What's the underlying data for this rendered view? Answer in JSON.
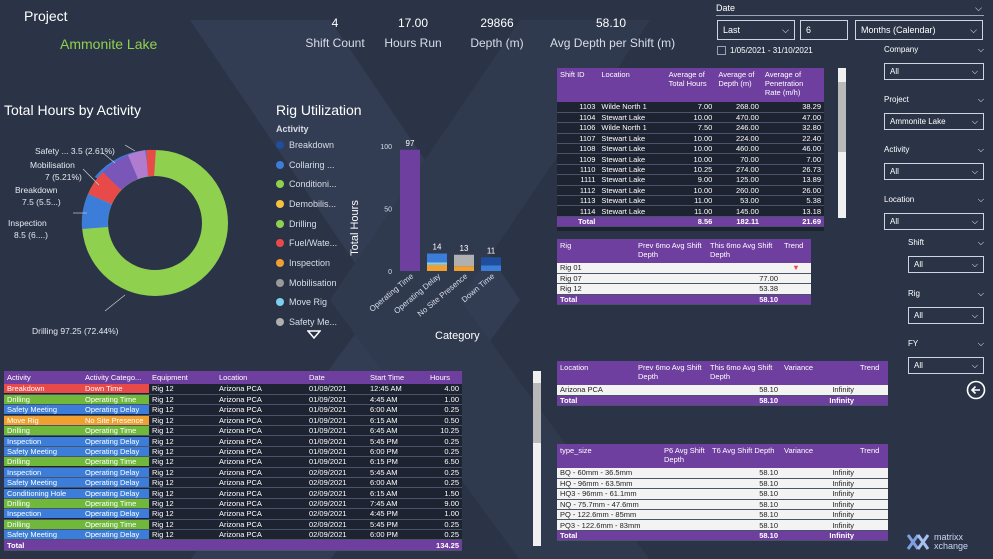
{
  "header": {
    "project_label": "Project",
    "project_name": "Ammonite Lake",
    "kpis": [
      {
        "value": "4",
        "label": "Shift Count"
      },
      {
        "value": "17.00",
        "label": "Hours Run"
      },
      {
        "value": "29866",
        "label": "Depth (m)"
      },
      {
        "value": "58.10",
        "label": "Avg Depth per Shift (m)"
      }
    ]
  },
  "date_filter": {
    "label": "Date",
    "mode": "Last",
    "count": "6",
    "unit": "Months (Calendar)",
    "range": "1/05/2021 - 31/10/2021"
  },
  "slicers": [
    {
      "label": "Company",
      "value": "All"
    },
    {
      "label": "Project",
      "value": "Ammonite Lake"
    },
    {
      "label": "Activity",
      "value": "All"
    },
    {
      "label": "Location",
      "value": "All"
    },
    {
      "label": "Shift",
      "value": "All"
    },
    {
      "label": "Rig",
      "value": "All"
    },
    {
      "label": "FY",
      "value": "All"
    }
  ],
  "colors": {
    "bg": "#2b3447",
    "purple": "#6f3fa0",
    "green": "#8fd14f"
  },
  "donut": {
    "title": "Total Hours by Activity",
    "labels": {
      "safety": "Safety ... 3.5 (2.61%)",
      "mobilisation_1": "Mobilisation",
      "mobilisation_2": "7 (5.21%)",
      "breakdown_1": "Breakdown",
      "breakdown_2": "7.5 (5.5...)",
      "inspection_1": "Inspection",
      "inspection_2": "8.5 (6....)",
      "drilling": "Drilling 97.25 (72.44%)"
    }
  },
  "chart_data": {
    "type": "bar",
    "title": "Rig Utilization",
    "xlabel": "Category",
    "ylabel": "Total Hours",
    "ylim": [
      0,
      100
    ],
    "yticks": [
      "0",
      "50",
      "100"
    ],
    "categories": [
      "Operating Time",
      "Operating Delay",
      "No Site Presence",
      "Down Time"
    ],
    "values": [
      97,
      14,
      13,
      11
    ],
    "value_labels": [
      "97",
      "14",
      "13",
      "11"
    ],
    "legend_title": "Activity",
    "legend": [
      {
        "name": "Breakdown",
        "color": "#1f4e9c"
      },
      {
        "name": "Collaring ...",
        "color": "#3b7dd8"
      },
      {
        "name": "Conditioni...",
        "color": "#8fd14f"
      },
      {
        "name": "Demobilis...",
        "color": "#f5c242"
      },
      {
        "name": "Drilling",
        "color": "#8fd14f"
      },
      {
        "name": "Fuel/Wate...",
        "color": "#e84a4a"
      },
      {
        "name": "Inspection",
        "color": "#f0a030"
      },
      {
        "name": "Mobilisation",
        "color": "#9a9a9a"
      },
      {
        "name": "Move Rig",
        "color": "#7fd0f0"
      },
      {
        "name": "Safety Me...",
        "color": "#b0b0b0"
      }
    ]
  },
  "shift_table": {
    "headers": [
      "Shift ID",
      "Location",
      "Average of Total Hours",
      "Average of Depth (m)",
      "Average of Penetration Rate (m/h)"
    ],
    "rows": [
      [
        "1103",
        "Wilde North 1",
        "7.00",
        "268.00",
        "38.29"
      ],
      [
        "1104",
        "Stewart Lake",
        "10.00",
        "470.00",
        "47.00"
      ],
      [
        "1106",
        "Wilde North 1",
        "7.50",
        "246.00",
        "32.80"
      ],
      [
        "1107",
        "Stewart Lake",
        "10.00",
        "224.00",
        "22.40"
      ],
      [
        "1108",
        "Stewart Lake",
        "10.00",
        "460.00",
        "46.00"
      ],
      [
        "1109",
        "Stewart Lake",
        "10.00",
        "70.00",
        "7.00"
      ],
      [
        "1110",
        "Stewart Lake",
        "10.25",
        "274.00",
        "26.73"
      ],
      [
        "1111",
        "Stewart Lake",
        "9.00",
        "125.00",
        "13.89"
      ],
      [
        "1112",
        "Stewart Lake",
        "10.00",
        "260.00",
        "26.00"
      ],
      [
        "1113",
        "Stewart Lake",
        "11.00",
        "53.00",
        "5.38"
      ],
      [
        "1114",
        "Stewart Lake",
        "11.00",
        "145.00",
        "13.18"
      ]
    ],
    "total": [
      "Total",
      "",
      "8.56",
      "182.11",
      "21.69"
    ]
  },
  "rig_table": {
    "headers": [
      "Rig",
      "Prev 6mo Avg Shift Depth",
      "This 6mo Avg Shift Depth",
      "Trend"
    ],
    "rows": [
      [
        "Rig 01",
        "",
        "",
        "▼"
      ],
      [
        "Rig 07",
        "",
        "77.00",
        ""
      ],
      [
        "Rig 12",
        "",
        "53.38",
        ""
      ]
    ],
    "total": [
      "Total",
      "",
      "58.10",
      ""
    ]
  },
  "location_table": {
    "headers": [
      "Location",
      "Prev 6mo Avg Shift Depth",
      "This 6mo Avg Shift Depth",
      "Variance",
      "Trend"
    ],
    "rows": [
      [
        "Arizona PCA",
        "",
        "58.10",
        "Infinity",
        ""
      ]
    ],
    "total": [
      "Total",
      "",
      "58.10",
      "Infinity",
      ""
    ]
  },
  "type_table": {
    "headers": [
      "type_size",
      "P6 Avg Shift Depth",
      "T6 Avg Shift Depth",
      "Variance",
      "Trend"
    ],
    "rows": [
      [
        "BQ - 60mm - 36.5mm",
        "",
        "58.10",
        "Infinity",
        ""
      ],
      [
        "HQ - 96mm - 63.5mm",
        "",
        "58.10",
        "Infinity",
        ""
      ],
      [
        "HQ3 - 96mm - 61.1mm",
        "",
        "58.10",
        "Infinity",
        ""
      ],
      [
        "NQ - 75.7mm - 47.6mm",
        "",
        "58.10",
        "Infinity",
        ""
      ],
      [
        "PQ - 122.6mm - 85mm",
        "",
        "58.10",
        "Infinity",
        ""
      ],
      [
        "PQ3 - 122.6mm - 83mm",
        "",
        "58.10",
        "Infinity",
        ""
      ]
    ],
    "total": [
      "Total",
      "",
      "58.10",
      "Infinity",
      ""
    ]
  },
  "activity_table": {
    "headers": [
      "Activity",
      "Activity Catego...",
      "Equipment",
      "Location",
      "Date",
      "Start Time",
      "Hours"
    ],
    "rows": [
      {
        "act": "Breakdown",
        "act_color": "#e84a4a",
        "cat": "Down Time",
        "cat_color": "#e84a4a",
        "eq": "Rig 12",
        "loc": "Arizona PCA",
        "date": "01/09/2021",
        "start": "12:45 AM",
        "hours": "4.00"
      },
      {
        "act": "Drilling",
        "act_color": "#6fb83c",
        "cat": "Operating Time",
        "cat_color": "#6fb83c",
        "eq": "Rig 12",
        "loc": "Arizona PCA",
        "date": "01/09/2021",
        "start": "4:45 AM",
        "hours": "1.00"
      },
      {
        "act": "Safety Meeting",
        "act_color": "#3b7dd8",
        "cat": "Operating Delay",
        "cat_color": "#3b7dd8",
        "eq": "Rig 12",
        "loc": "Arizona PCA",
        "date": "01/09/2021",
        "start": "6:00 AM",
        "hours": "0.25"
      },
      {
        "act": "Move Rig",
        "act_color": "#f0a030",
        "cat": "No Site Presence",
        "cat_color": "#f0a030",
        "eq": "Rig 12",
        "loc": "Arizona PCA",
        "date": "01/09/2021",
        "start": "6:15 AM",
        "hours": "0.50"
      },
      {
        "act": "Drilling",
        "act_color": "#6fb83c",
        "cat": "Operating Time",
        "cat_color": "#6fb83c",
        "eq": "Rig 12",
        "loc": "Arizona PCA",
        "date": "01/09/2021",
        "start": "6:45 AM",
        "hours": "10.25"
      },
      {
        "act": "Inspection",
        "act_color": "#3b7dd8",
        "cat": "Operating Delay",
        "cat_color": "#3b7dd8",
        "eq": "Rig 12",
        "loc": "Arizona PCA",
        "date": "01/09/2021",
        "start": "5:45 PM",
        "hours": "0.25"
      },
      {
        "act": "Safety Meeting",
        "act_color": "#3b7dd8",
        "cat": "Operating Delay",
        "cat_color": "#3b7dd8",
        "eq": "Rig 12",
        "loc": "Arizona PCA",
        "date": "01/09/2021",
        "start": "6:00 PM",
        "hours": "0.25"
      },
      {
        "act": "Drilling",
        "act_color": "#6fb83c",
        "cat": "Operating Time",
        "cat_color": "#6fb83c",
        "eq": "Rig 12",
        "loc": "Arizona PCA",
        "date": "01/09/2021",
        "start": "6:15 PM",
        "hours": "6.50"
      },
      {
        "act": "Inspection",
        "act_color": "#3b7dd8",
        "cat": "Operating Delay",
        "cat_color": "#3b7dd8",
        "eq": "Rig 12",
        "loc": "Arizona PCA",
        "date": "02/09/2021",
        "start": "5:45 AM",
        "hours": "0.25"
      },
      {
        "act": "Safety Meeting",
        "act_color": "#3b7dd8",
        "cat": "Operating Delay",
        "cat_color": "#3b7dd8",
        "eq": "Rig 12",
        "loc": "Arizona PCA",
        "date": "02/09/2021",
        "start": "6:00 AM",
        "hours": "0.25"
      },
      {
        "act": "Conditioning Hole",
        "act_color": "#3b7dd8",
        "cat": "Operating Delay",
        "cat_color": "#3b7dd8",
        "eq": "Rig 12",
        "loc": "Arizona PCA",
        "date": "02/09/2021",
        "start": "6:15 AM",
        "hours": "1.50"
      },
      {
        "act": "Drilling",
        "act_color": "#6fb83c",
        "cat": "Operating Time",
        "cat_color": "#6fb83c",
        "eq": "Rig 12",
        "loc": "Arizona PCA",
        "date": "02/09/2021",
        "start": "7:45 AM",
        "hours": "9.00"
      },
      {
        "act": "Inspection",
        "act_color": "#3b7dd8",
        "cat": "Operating Delay",
        "cat_color": "#3b7dd8",
        "eq": "Rig 12",
        "loc": "Arizona PCA",
        "date": "02/09/2021",
        "start": "4:45 PM",
        "hours": "1.00"
      },
      {
        "act": "Drilling",
        "act_color": "#6fb83c",
        "cat": "Operating Time",
        "cat_color": "#6fb83c",
        "eq": "Rig 12",
        "loc": "Arizona PCA",
        "date": "02/09/2021",
        "start": "5:45 PM",
        "hours": "0.25"
      },
      {
        "act": "Safety Meeting",
        "act_color": "#3b7dd8",
        "cat": "Operating Delay",
        "cat_color": "#3b7dd8",
        "eq": "Rig 12",
        "loc": "Arizona PCA",
        "date": "02/09/2021",
        "start": "6:00 PM",
        "hours": "0.25"
      }
    ],
    "total_label": "Total",
    "total_hours": "134.25"
  },
  "brand": {
    "line1": "matrixx",
    "line2": "xchange"
  }
}
